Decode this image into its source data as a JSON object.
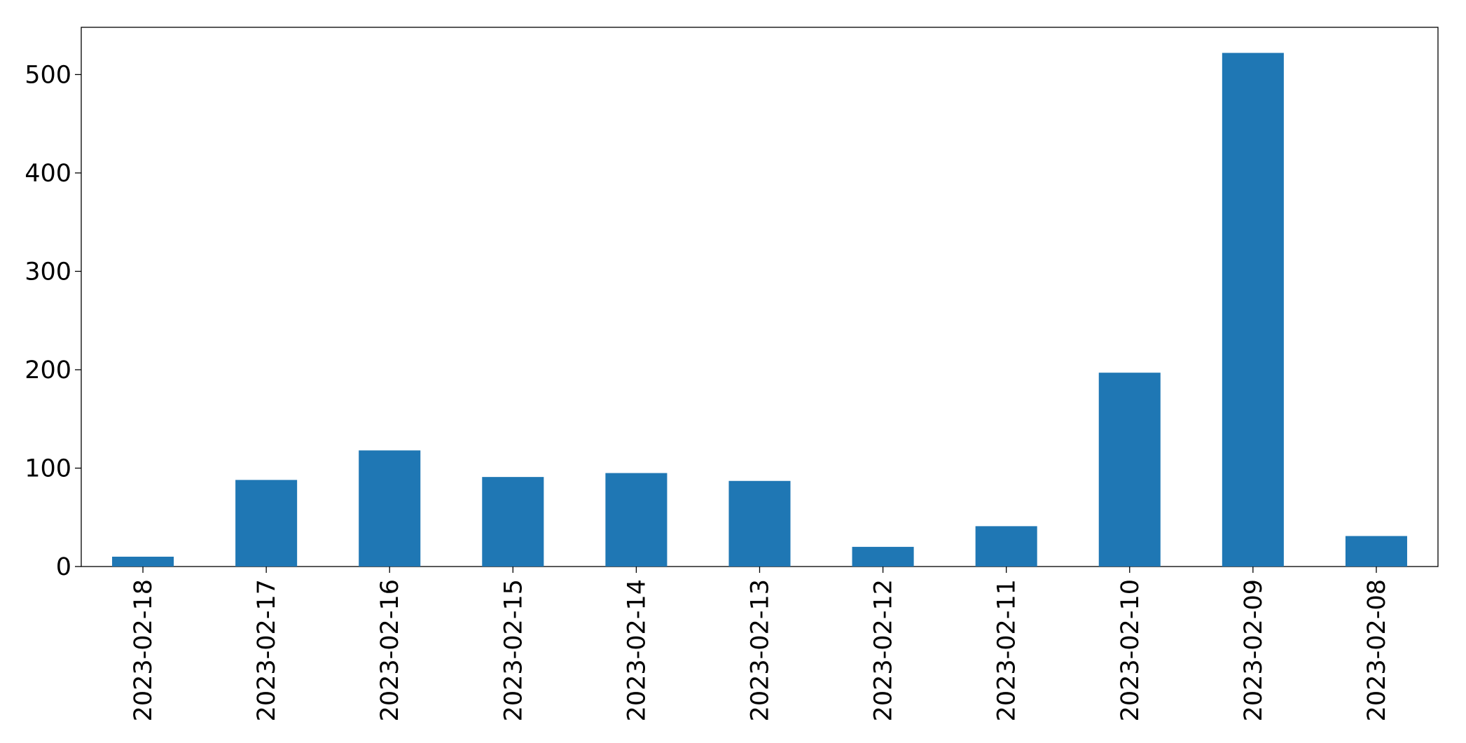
{
  "chart_data": {
    "type": "bar",
    "categories": [
      "2023-02-18",
      "2023-02-17",
      "2023-02-16",
      "2023-02-15",
      "2023-02-14",
      "2023-02-13",
      "2023-02-12",
      "2023-02-11",
      "2023-02-10",
      "2023-02-09",
      "2023-02-08"
    ],
    "values": [
      10,
      88,
      118,
      91,
      95,
      87,
      20,
      41,
      197,
      522,
      31
    ],
    "color": "#1f77b4",
    "ylim": [
      0,
      548
    ],
    "yticks": [
      0,
      100,
      200,
      300,
      400,
      500
    ],
    "grid": false
  }
}
